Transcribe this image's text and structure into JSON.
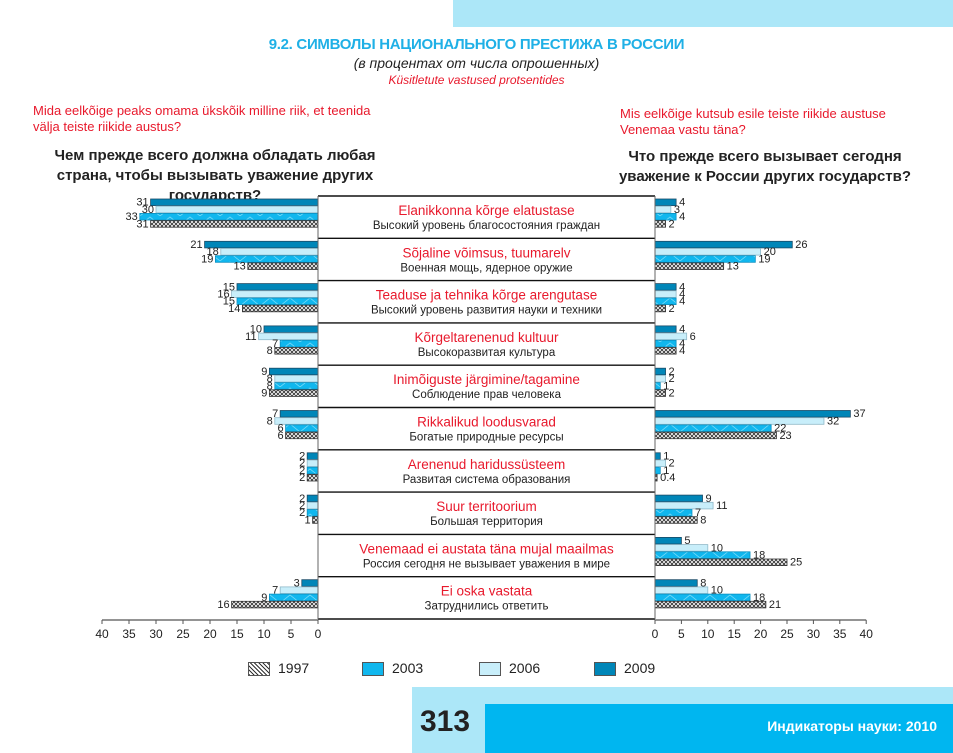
{
  "header": {
    "title": "9.2. СИМВОЛЫ НАЦИОНАЛЬНОГО ПРЕСТИЖА В РОССИИ",
    "subtitle": "(в процентах от числа опрошенных)",
    "subtitle_et": "Küsitletute vastused protsentides"
  },
  "left_question": {
    "et": "Mida eelkõige peaks omama ükskõik milline riik, et teenida välja teiste riikide austus?",
    "ru": "Чем прежде всего должна обладать любая страна, чтобы вызывать уважение других государств?"
  },
  "right_question": {
    "et": "Mis eelkõige kutsub esile teiste riikide austuse Venemaa vastu täna?",
    "ru": "Что прежде всего вызывает сегодня уважение к России других государств?"
  },
  "footer": {
    "page_number": "313",
    "publication": "Индикаторы науки: 2010"
  },
  "colors": {
    "2009": "#0086b8",
    "2006": "#c8eefa",
    "2003": "#10b7ee",
    "1997_pattern": "#333333",
    "accent_title": "#1fb0e6",
    "accent_et": "#e8192c"
  },
  "chart_data": {
    "type": "bar",
    "orientation": "horizontal-butterfly",
    "title": "9.2. СИМВОЛЫ НАЦИОНАЛЬНОГО ПРЕСТИЖА В РОССИИ",
    "unit": "percent of respondents",
    "xlim": [
      0,
      40
    ],
    "x_ticks": [
      0,
      5,
      10,
      15,
      20,
      25,
      30,
      35,
      40
    ],
    "legend": [
      "1997",
      "2003",
      "2006",
      "2009"
    ],
    "legend_position": "bottom",
    "series_order_in_group": [
      "2009",
      "2006",
      "2003",
      "1997"
    ],
    "categories": [
      {
        "et": "Elanikkonna kõrge elatustase",
        "ru": "Высокий уровень благосостояния граждан"
      },
      {
        "et": "Sõjaline võimsus, tuumarelv",
        "ru": "Военная мощь, ядерное оружие"
      },
      {
        "et": "Teaduse ja tehnika kõrge arengutase",
        "ru": "Высокий уровень развития науки и техники"
      },
      {
        "et": "Kõrgeltarenenud kultuur",
        "ru": "Высокоразвитая культура"
      },
      {
        "et": "Inimõiguste järgimine/tagamine",
        "ru": "Соблюдение прав человека"
      },
      {
        "et": "Rikkalikud loodusvarad",
        "ru": "Богатые природные ресурсы"
      },
      {
        "et": "Arenenud haridussüsteem",
        "ru": "Развитая система образования"
      },
      {
        "et": "Suur territoorium",
        "ru": "Большая территория"
      },
      {
        "et": "Venemaad ei austata täna mujal maailmas",
        "ru": "Россия сегодня не вызывает уважения в мире"
      },
      {
        "et": "Ei oska vastata",
        "ru": "Затруднились ответить"
      }
    ],
    "left": {
      "label": "Чем прежде всего должна обладать любая страна, чтобы вызывать уважение других государств?",
      "series": [
        {
          "name": "2009",
          "values": [
            31,
            21,
            15,
            10,
            9,
            7,
            2,
            2,
            null,
            3
          ]
        },
        {
          "name": "2006",
          "values": [
            30,
            18,
            16,
            11,
            8,
            8,
            2,
            2,
            null,
            7
          ]
        },
        {
          "name": "2003",
          "values": [
            33,
            19,
            15,
            7,
            8,
            6,
            2,
            2,
            null,
            9
          ]
        },
        {
          "name": "1997",
          "values": [
            31,
            13,
            14,
            8,
            9,
            6,
            2,
            1,
            null,
            16
          ]
        }
      ]
    },
    "right": {
      "label": "Что прежде всего вызывает сегодня уважение к России других государств?",
      "series": [
        {
          "name": "2009",
          "values": [
            4,
            26,
            4,
            4,
            2,
            37,
            1,
            9,
            5,
            8
          ]
        },
        {
          "name": "2006",
          "values": [
            3,
            20,
            4,
            6,
            2,
            32,
            2,
            11,
            10,
            10
          ]
        },
        {
          "name": "2003",
          "values": [
            4,
            19,
            4,
            4,
            1,
            22,
            1,
            7,
            18,
            18
          ]
        },
        {
          "name": "1997",
          "values": [
            2,
            13,
            2,
            4,
            2,
            23,
            0.4,
            8,
            25,
            21
          ]
        }
      ]
    }
  }
}
